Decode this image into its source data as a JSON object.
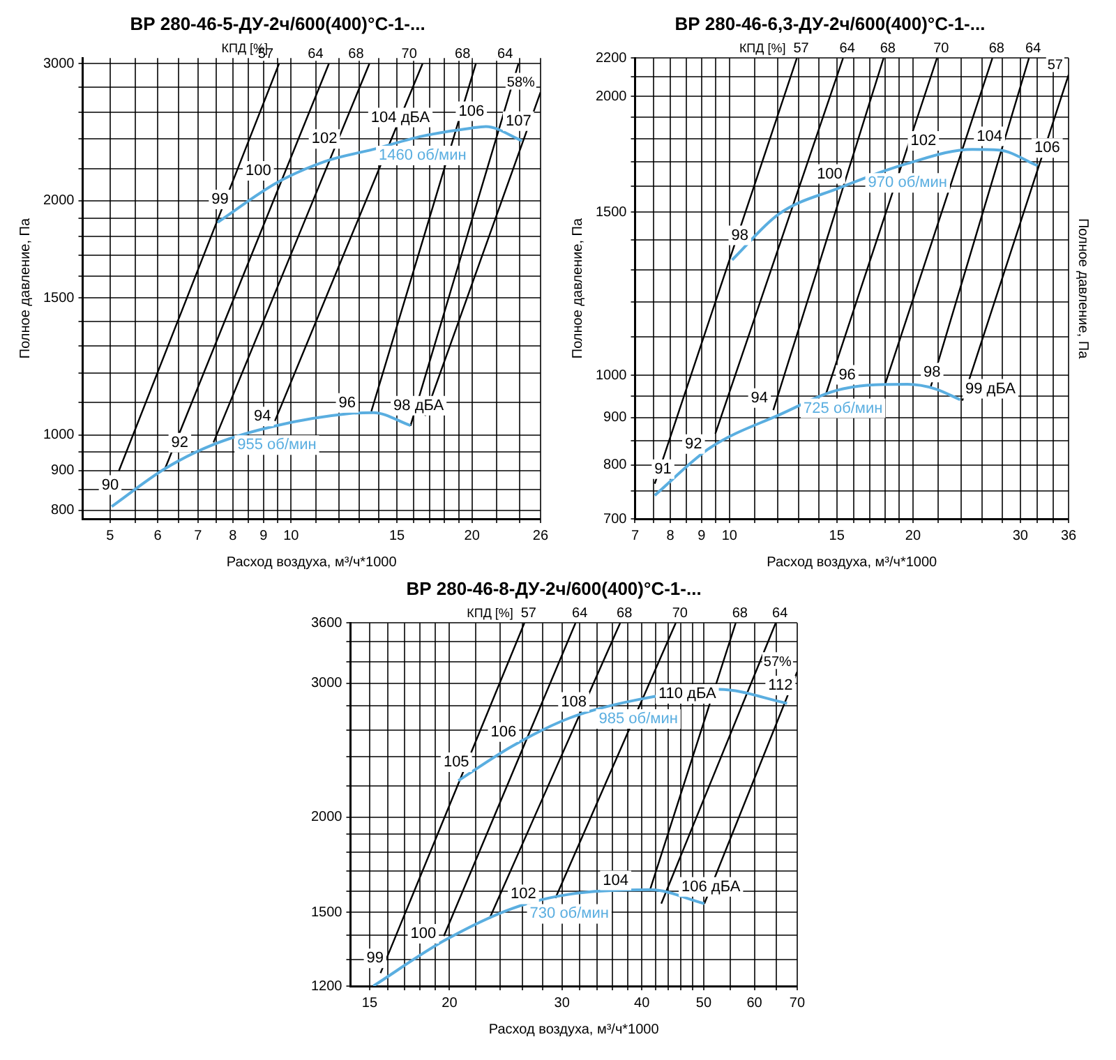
{
  "chart_data": [
    {
      "type": "line",
      "title": "ВР 280-46-5-ДУ-2ч/600(400)°С-1-...",
      "xlabel": "Расход воздуха, м³/ч*1000",
      "ylabel": "Полное давление, Па",
      "log": "xy",
      "grid": true,
      "legend": false,
      "marker": "none",
      "xlim": [
        4.5,
        26
      ],
      "ylim": [
        780,
        3050
      ],
      "xticks": [
        5,
        {
          "value": 5.5,
          "label": null
        },
        6,
        {
          "value": 6.5,
          "label": null
        },
        7,
        {
          "value": 7.5,
          "label": null
        },
        8,
        {
          "value": 8.5,
          "label": null
        },
        9,
        {
          "value": 9.5,
          "label": null
        },
        10,
        {
          "value": 11,
          "label": null
        },
        {
          "value": 12,
          "label": null
        },
        {
          "value": 13,
          "label": null
        },
        {
          "value": 14,
          "label": null
        },
        15,
        {
          "value": 16,
          "label": null
        },
        {
          "value": 17,
          "label": null
        },
        {
          "value": 18,
          "label": null
        },
        {
          "value": 19,
          "label": null
        },
        20,
        {
          "value": 22,
          "label": null
        },
        {
          "value": 24,
          "label": null
        },
        26
      ],
      "yticks": [
        800,
        {
          "value": 850,
          "label": null
        },
        900,
        {
          "value": 950,
          "label": null
        },
        1000,
        {
          "value": 1100,
          "label": null
        },
        {
          "value": 1200,
          "label": null
        },
        {
          "value": 1300,
          "label": null
        },
        {
          "value": 1400,
          "label": null
        },
        1500,
        {
          "value": 1600,
          "label": null
        },
        {
          "value": 1700,
          "label": null
        },
        {
          "value": 1800,
          "label": null
        },
        {
          "value": 1900,
          "label": null
        },
        2000,
        {
          "value": 2200,
          "label": null
        },
        {
          "value": 2400,
          "label": null
        },
        {
          "value": 2600,
          "label": null
        },
        {
          "value": 2800,
          "label": null
        },
        3000
      ],
      "series": [
        {
          "name": "1460 об/мин",
          "color": "#5aaee0",
          "x": [
            7.55,
            9.47,
            11.4,
            13.7,
            16.55,
            19.95,
            21.1,
            24.2
          ],
          "values": [
            1876,
            2109,
            2247,
            2328,
            2421,
            2479,
            2490,
            2388
          ]
        },
        {
          "name": "955 об/мин",
          "color": "#5aaee0",
          "x": [
            5.03,
            6.17,
            7.43,
            9.47,
            12.5,
            13.7,
            15.8
          ],
          "values": [
            809,
            905,
            972,
            1028,
            1065,
            1068,
            1028
          ]
        },
        {
          "name": "57",
          "color": "#000000",
          "x": [
            5.17,
            9.55
          ],
          "values": [
            899,
            3000
          ]
        },
        {
          "name": "64",
          "color": "#000000",
          "x": [
            6.17,
            11.56
          ],
          "values": [
            905,
            3000
          ]
        },
        {
          "name": "68",
          "color": "#000000",
          "x": [
            7.43,
            13.5
          ],
          "values": [
            978,
            3000
          ]
        },
        {
          "name": "70",
          "color": "#000000",
          "x": [
            9.4,
            16.55
          ],
          "values": [
            1042,
            3000
          ]
        },
        {
          "name": "68",
          "color": "#000000",
          "x": [
            13.6,
            20.3
          ],
          "values": [
            1072,
            3000
          ]
        },
        {
          "name": "64",
          "color": "#000000",
          "x": [
            15.8,
            23.9
          ],
          "values": [
            1027,
            3000
          ]
        },
        {
          "name": "58%",
          "color": "#000000",
          "x": [
            16.7,
            26
          ],
          "values": [
            1058,
            2755
          ]
        }
      ],
      "annotations": [
        "КПД [%]",
        {
          "text": "99",
          "x": 7.62,
          "y": 2007
        },
        {
          "text": "100",
          "x": 8.82,
          "y": 2184
        },
        {
          "text": "102",
          "x": 11.36,
          "y": 2400
        },
        {
          "text": "104 дБА",
          "x": 15.2,
          "y": 2558
        },
        {
          "text": "106",
          "x": 19.95,
          "y": 2606
        },
        {
          "text": "107",
          "x": 23.9,
          "y": 2530
        },
        {
          "text": "90",
          "x": 5,
          "y": 862
        },
        {
          "text": "92",
          "x": 6.53,
          "y": 977
        },
        {
          "text": "94",
          "x": 8.96,
          "y": 1056
        },
        {
          "text": "96",
          "x": 12.4,
          "y": 1099
        },
        {
          "text": "98 дБА",
          "x": 16.3,
          "y": 1090
        }
      ]
    },
    {
      "type": "line",
      "title": "ВР 280-46-6,3-ДУ-2ч/600(400)°С-1-...",
      "xlabel": "Расход воздуха, м³/ч*1000",
      "ylabel": "Полное давление, Па",
      "y2label": "Полное давление, Па",
      "log": "xy",
      "grid": true,
      "legend": false,
      "marker": "none",
      "xlim": [
        7,
        36
      ],
      "ylim": [
        700,
        2200
      ],
      "xticks": [
        7,
        {
          "value": 7.5,
          "label": null
        },
        8,
        {
          "value": 8.5,
          "label": null
        },
        9,
        {
          "value": 9.5,
          "label": null
        },
        10,
        {
          "value": 11,
          "label": null
        },
        {
          "value": 12,
          "label": null
        },
        {
          "value": 13,
          "label": null
        },
        {
          "value": 14,
          "label": null
        },
        15,
        {
          "value": 16,
          "label": null
        },
        {
          "value": 17,
          "label": null
        },
        {
          "value": 18,
          "label": null
        },
        {
          "value": 19,
          "label": null
        },
        20,
        {
          "value": 22,
          "label": null
        },
        {
          "value": 24,
          "label": null
        },
        {
          "value": 26,
          "label": null
        },
        {
          "value": 28,
          "label": null
        },
        30,
        {
          "value": 32,
          "label": null
        },
        {
          "value": 34,
          "label": null
        },
        36
      ],
      "yticks": [
        700,
        {
          "value": 750,
          "label": null
        },
        800,
        {
          "value": 850,
          "label": null
        },
        900,
        {
          "value": 950,
          "label": null
        },
        1000,
        {
          "value": 1100,
          "label": null
        },
        {
          "value": 1200,
          "label": null
        },
        {
          "value": 1300,
          "label": null
        },
        {
          "value": 1400,
          "label": null
        },
        1500,
        {
          "value": 1600,
          "label": null
        },
        {
          "value": 1700,
          "label": null
        },
        {
          "value": 1800,
          "label": null
        },
        {
          "value": 1900,
          "label": null
        },
        2000,
        {
          "value": 2100,
          "label": null
        },
        2200
      ],
      "series": [
        {
          "name": "970 об/мин",
          "color": "#5aaee0",
          "x": [
            10.1,
            12.05,
            15.1,
            19.6,
            25.0,
            27.7,
            32.0
          ],
          "values": [
            1332,
            1493,
            1592,
            1693,
            1753,
            1750,
            1684
          ]
        },
        {
          "name": "725 об/мин",
          "color": "#5aaee0",
          "x": [
            7.54,
            9.29,
            12.05,
            15.36,
            19.6,
            21.75,
            23.9
          ],
          "values": [
            742,
            835,
            906,
            967,
            978,
            967,
            941
          ]
        },
        {
          "name": "57",
          "color": "#000000",
          "x": [
            7.54,
            12.9
          ],
          "values": [
            764,
            2200
          ]
        },
        {
          "name": "64",
          "color": "#000000",
          "x": [
            9.48,
            15.36
          ],
          "values": [
            865,
            2200
          ]
        },
        {
          "name": "68",
          "color": "#000000",
          "x": [
            11.8,
            17.9
          ],
          "values": [
            917,
            2200
          ]
        },
        {
          "name": "70",
          "color": "#000000",
          "x": [
            14.4,
            21.9
          ],
          "values": [
            955,
            2200
          ]
        },
        {
          "name": "68",
          "color": "#000000",
          "x": [
            18.0,
            27.0
          ],
          "values": [
            978,
            2200
          ]
        },
        {
          "name": "64",
          "color": "#000000",
          "x": [
            21.4,
            31.0
          ],
          "values": [
            973,
            2200
          ]
        },
        {
          "name": "57",
          "color": "#000000",
          "x": [
            24.1,
            36
          ],
          "values": [
            939,
            2110
          ]
        }
      ],
      "annotations": [
        "КПД [%]",
        {
          "text": "98",
          "x": 10.4,
          "y": 1416
        },
        {
          "text": "100",
          "x": 14.6,
          "y": 1649
        },
        {
          "text": "102",
          "x": 20.8,
          "y": 1791
        },
        {
          "text": "104",
          "x": 26.7,
          "y": 1811
        },
        {
          "text": "106",
          "x": 33.2,
          "y": 1759
        },
        {
          "text": "91",
          "x": 7.78,
          "y": 792
        },
        {
          "text": "92",
          "x": 8.73,
          "y": 843
        },
        {
          "text": "94",
          "x": 11.2,
          "y": 945
        },
        {
          "text": "96",
          "x": 15.6,
          "y": 1001
        },
        {
          "text": "98",
          "x": 21.5,
          "y": 1007
        },
        {
          "text": "99 дБА",
          "x": 26.8,
          "y": 967
        }
      ]
    },
    {
      "type": "line",
      "title": "ВР 280-46-8-ДУ-2ч/600(400)°С-1-...",
      "xlabel": "Расход воздуха, м³/ч*1000",
      "log": "xy",
      "grid": true,
      "legend": false,
      "marker": "none",
      "xlim": [
        14,
        70
      ],
      "ylim": [
        1200,
        3600
      ],
      "xticks": [
        15,
        {
          "value": 16,
          "label": null
        },
        {
          "value": 17,
          "label": null
        },
        {
          "value": 18,
          "label": null
        },
        {
          "value": 19,
          "label": null
        },
        20,
        {
          "value": 22,
          "label": null
        },
        {
          "value": 24,
          "label": null
        },
        {
          "value": 26,
          "label": null
        },
        {
          "value": 28,
          "label": null
        },
        30,
        {
          "value": 32,
          "label": null
        },
        {
          "value": 34,
          "label": null
        },
        {
          "value": 36,
          "label": null
        },
        {
          "value": 38,
          "label": null
        },
        40,
        {
          "value": 42,
          "label": null
        },
        {
          "value": 44,
          "label": null
        },
        {
          "value": 46,
          "label": null
        },
        {
          "value": 48,
          "label": null
        },
        50,
        {
          "value": 55,
          "label": null
        },
        60,
        {
          "value": 65,
          "label": null
        },
        70
      ],
      "yticks": [
        1200,
        {
          "value": 1300,
          "label": null
        },
        {
          "value": 1400,
          "label": null
        },
        1500,
        {
          "value": 1600,
          "label": null
        },
        {
          "value": 1700,
          "label": null
        },
        {
          "value": 1800,
          "label": null
        },
        {
          "value": 1900,
          "label": null
        },
        2000,
        {
          "value": 2200,
          "label": null
        },
        {
          "value": 2400,
          "label": null
        },
        {
          "value": 2600,
          "label": null
        },
        {
          "value": 2800,
          "label": null
        },
        3000,
        {
          "value": 3200,
          "label": null
        },
        {
          "value": 3400,
          "label": null
        },
        3600
      ],
      "series": [
        {
          "name": "985 об/мин",
          "color": "#5aaee0",
          "x": [
            20.65,
            25.1,
            30.8,
            39.5,
            52.8,
            67.5
          ],
          "values": [
            2234,
            2481,
            2699,
            2855,
            2944,
            2823
          ]
        },
        {
          "name": "730 об/мин",
          "color": "#5aaee0",
          "x": [
            15.2,
            19.6,
            25.1,
            30.8,
            41.2,
            50.1
          ],
          "values": [
            1200,
            1376,
            1518,
            1584,
            1606,
            1540
          ]
        },
        {
          "name": "57",
          "color": "#000000",
          "x": [
            15.6,
            26.2
          ],
          "values": [
            1248,
            3600
          ]
        },
        {
          "name": "64",
          "color": "#000000",
          "x": [
            19.6,
            31.5
          ],
          "values": [
            1396,
            3600
          ]
        },
        {
          "name": "68",
          "color": "#000000",
          "x": [
            23.1,
            37.0
          ],
          "values": [
            1472,
            3600
          ]
        },
        {
          "name": "70",
          "color": "#000000",
          "x": [
            29.3,
            45.2
          ],
          "values": [
            1566,
            3600
          ]
        },
        {
          "name": "68",
          "color": "#000000",
          "x": [
            41.2,
            56.1
          ],
          "values": [
            1606,
            3600
          ]
        },
        {
          "name": "64",
          "color": "#000000",
          "x": [
            42.9,
            64.8
          ],
          "values": [
            1540,
            3600
          ]
        },
        {
          "name": "57%",
          "color": "#000000",
          "x": [
            50.1,
            70
          ],
          "values": [
            1540,
            3105
          ]
        }
      ],
      "annotations": [
        "КПД [%]",
        {
          "text": "105",
          "x": 20.5,
          "y": 2362
        },
        {
          "text": "106",
          "x": 24.3,
          "y": 2588
        },
        {
          "text": "108",
          "x": 31.3,
          "y": 2835
        },
        {
          "text": "110 дБА",
          "x": 47.1,
          "y": 2905
        },
        {
          "text": "112",
          "x": 65.9,
          "y": 2978
        },
        {
          "text": "99",
          "x": 15.3,
          "y": 1305
        },
        {
          "text": "100",
          "x": 18.2,
          "y": 1406
        },
        {
          "text": "102",
          "x": 26.1,
          "y": 1584
        },
        {
          "text": "104",
          "x": 36.4,
          "y": 1652
        },
        {
          "text": "106 дБА",
          "x": 51.3,
          "y": 1620
        }
      ]
    }
  ]
}
